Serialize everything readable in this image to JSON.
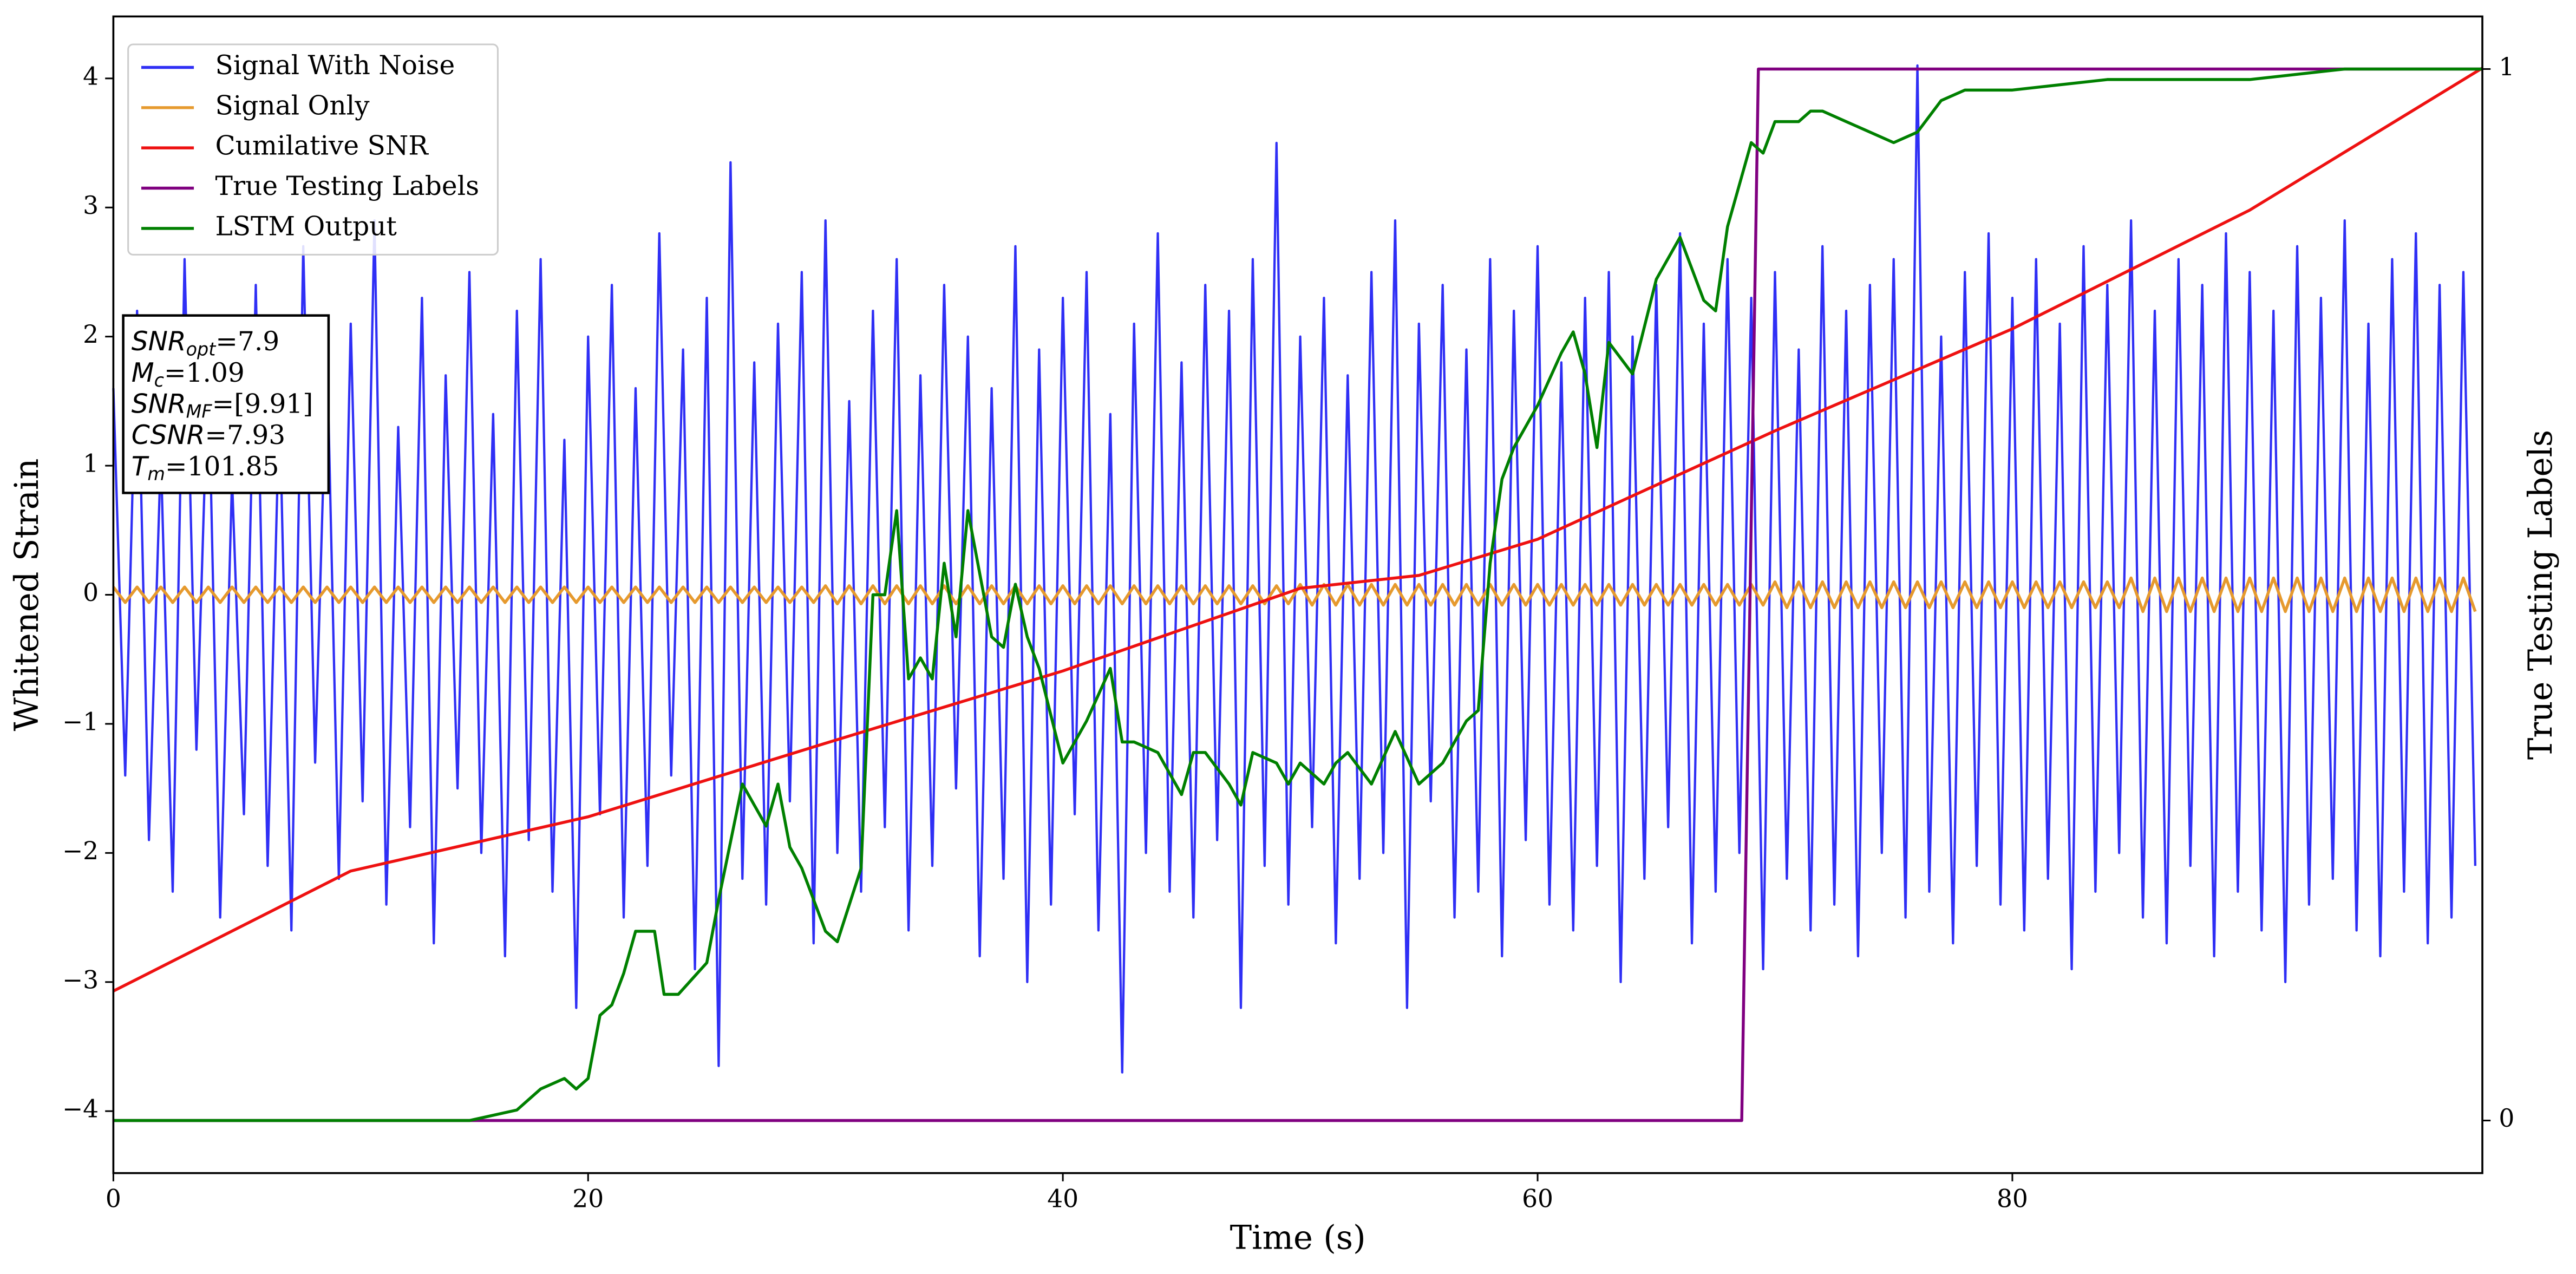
{
  "chart_data": {
    "type": "line",
    "xlabel": "Time (s)",
    "ylabel": "Whitened Strain",
    "y2label": "True Testing Labels",
    "xlim": [
      0,
      99.8
    ],
    "ylim": [
      -4.48,
      4.48
    ],
    "y2lim": [
      -0.05,
      1.05
    ],
    "xticks": [
      0,
      20,
      40,
      60,
      80
    ],
    "yticks": [
      {
        "value": -4,
        "label": "−4"
      },
      {
        "value": -3,
        "label": "−3"
      },
      {
        "value": -2,
        "label": "−2"
      },
      {
        "value": -1,
        "label": "−1"
      },
      0,
      1,
      2,
      3,
      4
    ],
    "y2ticks": [
      0,
      1
    ],
    "legend": "upper left",
    "annotation": [
      {
        "symbol": "SNR",
        "sub": "opt",
        "text": "=7.9"
      },
      {
        "symbol": "M",
        "sub": "c",
        "text": "=1.09"
      },
      {
        "symbol": "SNR",
        "sub": "MF",
        "text": "=[9.91]"
      },
      {
        "symbol": "CSNR",
        "text": "=7.93"
      },
      {
        "symbol": "T",
        "sub": "m",
        "text": "=101.85"
      }
    ],
    "x": [
      0,
      0.5,
      1,
      1.5,
      2,
      2.5,
      3,
      3.5,
      4,
      4.5,
      5,
      5.5,
      6,
      6.5,
      7,
      7.5,
      8,
      8.5,
      9,
      9.5,
      10,
      10.5,
      11,
      11.5,
      12,
      12.5,
      13,
      13.5,
      14,
      14.5,
      15,
      15.5,
      16,
      16.5,
      17,
      17.5,
      18,
      18.5,
      19,
      19.5,
      20,
      20.5,
      21,
      21.5,
      22,
      22.5,
      23,
      23.5,
      24,
      24.5,
      25,
      25.5,
      26,
      26.5,
      27,
      27.5,
      28,
      28.5,
      29,
      29.5,
      30,
      30.5,
      31,
      31.5,
      32,
      32.5,
      33,
      33.5,
      34,
      34.5,
      35,
      35.5,
      36,
      36.5,
      37,
      37.5,
      38,
      38.5,
      39,
      39.5,
      40,
      40.5,
      41,
      41.5,
      42,
      42.5,
      43,
      43.5,
      44,
      44.5,
      45,
      45.5,
      46,
      46.5,
      47,
      47.5,
      48,
      48.5,
      49,
      49.5,
      50,
      50.5,
      51,
      51.5,
      52,
      52.5,
      53,
      53.5,
      54,
      54.5,
      55,
      55.5,
      56,
      56.5,
      57,
      57.5,
      58,
      58.5,
      59,
      59.5,
      60,
      60.5,
      61,
      61.5,
      62,
      62.5,
      63,
      63.5,
      64,
      64.5,
      65,
      65.5,
      66,
      66.5,
      67,
      67.5,
      68,
      68.5,
      69,
      69.5,
      70,
      70.5,
      71,
      71.5,
      72,
      72.5,
      73,
      73.5,
      74,
      74.5,
      75,
      75.5,
      76,
      76.5,
      77,
      77.5,
      78,
      78.5,
      79,
      79.5,
      80,
      80.5,
      81,
      81.5,
      82,
      82.5,
      83,
      83.5,
      84,
      84.5,
      85,
      85.5,
      86,
      86.5,
      87,
      87.5,
      88,
      88.5,
      89,
      89.5,
      90,
      90.5,
      91,
      91.5,
      92,
      92.5,
      93,
      93.5,
      94,
      94.5,
      95,
      95.5,
      96,
      96.5,
      97,
      97.5,
      98,
      98.5,
      99,
      99.5
    ],
    "series": [
      {
        "name": "Signal With Noise",
        "color": "#2f2ff5",
        "values": [
          1.6,
          -1.4,
          2.2,
          -1.9,
          1.1,
          -2.3,
          2.6,
          -1.2,
          1.8,
          -2.5,
          0.9,
          -1.7,
          2.4,
          -2.1,
          1.5,
          -2.6,
          2.7,
          -1.3,
          1.9,
          -2.2,
          2.1,
          -1.6,
          2.9,
          -2.4,
          1.3,
          -1.8,
          2.3,
          -2.7,
          1.7,
          -1.5,
          2.5,
          -2.0,
          1.4,
          -2.8,
          2.2,
          -1.9,
          2.6,
          -2.3,
          1.2,
          -3.2,
          2.0,
          -1.7,
          2.4,
          -2.5,
          1.6,
          -2.1,
          2.8,
          -1.4,
          1.9,
          -2.9,
          2.3,
          -3.65,
          3.35,
          -2.2,
          1.8,
          -2.4,
          2.1,
          -1.6,
          2.5,
          -2.7,
          2.9,
          -2.0,
          1.5,
          -2.3,
          2.2,
          -1.8,
          2.6,
          -2.6,
          1.7,
          -2.1,
          2.4,
          -1.5,
          2.0,
          -2.8,
          1.6,
          -2.2,
          2.7,
          -3.0,
          1.9,
          -2.4,
          2.3,
          -1.7,
          2.5,
          -2.6,
          1.4,
          -3.7,
          2.1,
          -2.0,
          2.8,
          -2.3,
          1.8,
          -2.5,
          2.4,
          -1.9,
          2.2,
          -3.2,
          2.6,
          -2.1,
          3.5,
          -2.4,
          2.0,
          -1.8,
          2.3,
          -2.7,
          1.7,
          -2.2,
          2.5,
          -2.0,
          2.9,
          -3.2,
          2.1,
          -1.6,
          2.4,
          -2.5,
          1.9,
          -2.3,
          2.6,
          -2.8,
          2.2,
          -1.9,
          2.7,
          -2.4,
          1.8,
          -2.6,
          2.3,
          -2.1,
          2.5,
          -3.0,
          2.0,
          -2.2,
          2.4,
          -1.8,
          2.8,
          -2.7,
          2.1,
          -2.3,
          2.6,
          -2.0,
          2.3,
          -2.9,
          2.5,
          -2.2,
          1.9,
          -2.6,
          2.7,
          -2.4,
          2.2,
          -2.8,
          2.4,
          -2.0,
          2.6,
          -2.5,
          4.1,
          -2.3,
          2.0,
          -2.7,
          2.5,
          -2.1,
          2.8,
          -2.4,
          2.3,
          -2.6,
          2.6,
          -2.2,
          2.1,
          -2.9,
          2.7,
          -2.3,
          2.4,
          -2.0,
          2.9,
          -2.5,
          2.2,
          -2.7,
          2.6,
          -2.1,
          2.4,
          -2.8,
          2.8,
          -2.3,
          2.5,
          -2.6,
          2.2,
          -3.0,
          2.7,
          -2.4,
          2.3,
          -2.2,
          2.9,
          -2.6,
          2.1,
          -2.8,
          2.6,
          -2.3,
          2.8,
          -2.7,
          2.4,
          -2.5,
          2.5,
          -2.1
        ]
      },
      {
        "name": "Signal Only",
        "color": "#e69a2e",
        "values": [
          0.06,
          -0.06,
          0.06,
          -0.06,
          0.06,
          -0.06,
          0.06,
          -0.06,
          0.06,
          -0.06,
          0.06,
          -0.06,
          0.06,
          -0.06,
          0.06,
          -0.06,
          0.06,
          -0.06,
          0.06,
          -0.06,
          0.06,
          -0.06,
          0.06,
          -0.06,
          0.06,
          -0.06,
          0.06,
          -0.06,
          0.06,
          -0.06,
          0.06,
          -0.06,
          0.06,
          -0.06,
          0.06,
          -0.06,
          0.06,
          -0.06,
          0.06,
          -0.06,
          0.06,
          -0.06,
          0.06,
          -0.06,
          0.06,
          -0.06,
          0.06,
          -0.06,
          0.06,
          -0.06,
          0.06,
          -0.06,
          0.06,
          -0.06,
          0.06,
          -0.06,
          0.06,
          -0.06,
          0.06,
          -0.06,
          0.07,
          -0.07,
          0.07,
          -0.07,
          0.07,
          -0.07,
          0.07,
          -0.07,
          0.07,
          -0.07,
          0.07,
          -0.07,
          0.07,
          -0.07,
          0.07,
          -0.07,
          0.07,
          -0.07,
          0.07,
          -0.07,
          0.07,
          -0.07,
          0.07,
          -0.07,
          0.07,
          -0.07,
          0.07,
          -0.07,
          0.07,
          -0.07,
          0.07,
          -0.07,
          0.07,
          -0.07,
          0.07,
          -0.07,
          0.07,
          -0.07,
          0.07,
          -0.07,
          0.08,
          -0.08,
          0.08,
          -0.08,
          0.08,
          -0.08,
          0.08,
          -0.08,
          0.08,
          -0.08,
          0.08,
          -0.08,
          0.08,
          -0.08,
          0.08,
          -0.08,
          0.08,
          -0.08,
          0.08,
          -0.08,
          0.08,
          -0.08,
          0.08,
          -0.08,
          0.08,
          -0.08,
          0.08,
          -0.08,
          0.08,
          -0.08,
          0.08,
          -0.08,
          0.08,
          -0.08,
          0.08,
          -0.08,
          0.08,
          -0.08,
          0.08,
          -0.08,
          0.1,
          -0.1,
          0.1,
          -0.1,
          0.1,
          -0.1,
          0.1,
          -0.1,
          0.1,
          -0.1,
          0.1,
          -0.1,
          0.1,
          -0.1,
          0.1,
          -0.1,
          0.1,
          -0.1,
          0.1,
          -0.1,
          0.1,
          -0.1,
          0.1,
          -0.1,
          0.1,
          -0.1,
          0.1,
          -0.1,
          0.1,
          -0.1,
          0.13,
          -0.13,
          0.13,
          -0.13,
          0.13,
          -0.13,
          0.13,
          -0.13,
          0.13,
          -0.13,
          0.13,
          -0.13,
          0.13,
          -0.13,
          0.13,
          -0.13,
          0.13,
          -0.13,
          0.13,
          -0.13,
          0.13,
          -0.13,
          0.13,
          -0.13,
          0.13,
          -0.13,
          0.13,
          -0.13,
          0.13,
          -0.13
        ]
      },
      {
        "name": "Cumilative SNR",
        "color": "#ee1111",
        "x": [
          0,
          10,
          20,
          30,
          40,
          50,
          55,
          60,
          70,
          80,
          90,
          99.8
        ],
        "values": [
          -3.07,
          -2.14,
          -1.72,
          -1.15,
          -0.59,
          0.05,
          0.15,
          0.43,
          1.27,
          2.06,
          2.98,
          4.08
        ]
      },
      {
        "name": "True Testing Labels",
        "color": "#800080",
        "axis": "y2",
        "x": [
          0,
          68.6,
          69.3,
          99.8
        ],
        "values": [
          0,
          0,
          1,
          1
        ]
      },
      {
        "name": "LSTM Output",
        "color": "#008000",
        "axis": "y2",
        "x": [
          0,
          15,
          17,
          18,
          19,
          19.5,
          20,
          20.5,
          21,
          21.5,
          22,
          22.8,
          23.2,
          23.8,
          25,
          25.5,
          26.5,
          27,
          27.5,
          28,
          28.5,
          29,
          30,
          30.5,
          31.5,
          32,
          32.5,
          33,
          33.5,
          34,
          34.5,
          35,
          35.5,
          36,
          37,
          37.5,
          38,
          38.5,
          39,
          40,
          41,
          42,
          42.5,
          43,
          44,
          45,
          45.5,
          46,
          47,
          47.5,
          48,
          49,
          49.5,
          50,
          51,
          51.5,
          52,
          53,
          54,
          55,
          56,
          57,
          57.5,
          58,
          58.5,
          59,
          60,
          61,
          61.5,
          62,
          62.5,
          63,
          64,
          65,
          66,
          67,
          67.5,
          68,
          69,
          69.5,
          70,
          71,
          71.5,
          72,
          73,
          74,
          75,
          76,
          77,
          78,
          80,
          84,
          90,
          94,
          99.8
        ],
        "values": [
          0,
          0,
          0.01,
          0.03,
          0.04,
          0.03,
          0.04,
          0.1,
          0.11,
          0.14,
          0.18,
          0.18,
          0.12,
          0.12,
          0.15,
          0.21,
          0.32,
          0.3,
          0.28,
          0.32,
          0.26,
          0.24,
          0.18,
          0.17,
          0.24,
          0.5,
          0.5,
          0.58,
          0.42,
          0.44,
          0.42,
          0.53,
          0.46,
          0.58,
          0.46,
          0.45,
          0.51,
          0.46,
          0.43,
          0.34,
          0.38,
          0.43,
          0.36,
          0.36,
          0.35,
          0.31,
          0.35,
          0.35,
          0.32,
          0.3,
          0.35,
          0.34,
          0.32,
          0.34,
          0.32,
          0.34,
          0.35,
          0.32,
          0.37,
          0.32,
          0.34,
          0.38,
          0.39,
          0.53,
          0.61,
          0.64,
          0.68,
          0.73,
          0.75,
          0.71,
          0.64,
          0.74,
          0.71,
          0.8,
          0.84,
          0.78,
          0.77,
          0.85,
          0.93,
          0.92,
          0.95,
          0.95,
          0.96,
          0.96,
          0.95,
          0.94,
          0.93,
          0.94,
          0.97,
          0.98,
          0.98,
          0.99,
          0.99,
          1.0,
          1.0
        ]
      }
    ]
  }
}
